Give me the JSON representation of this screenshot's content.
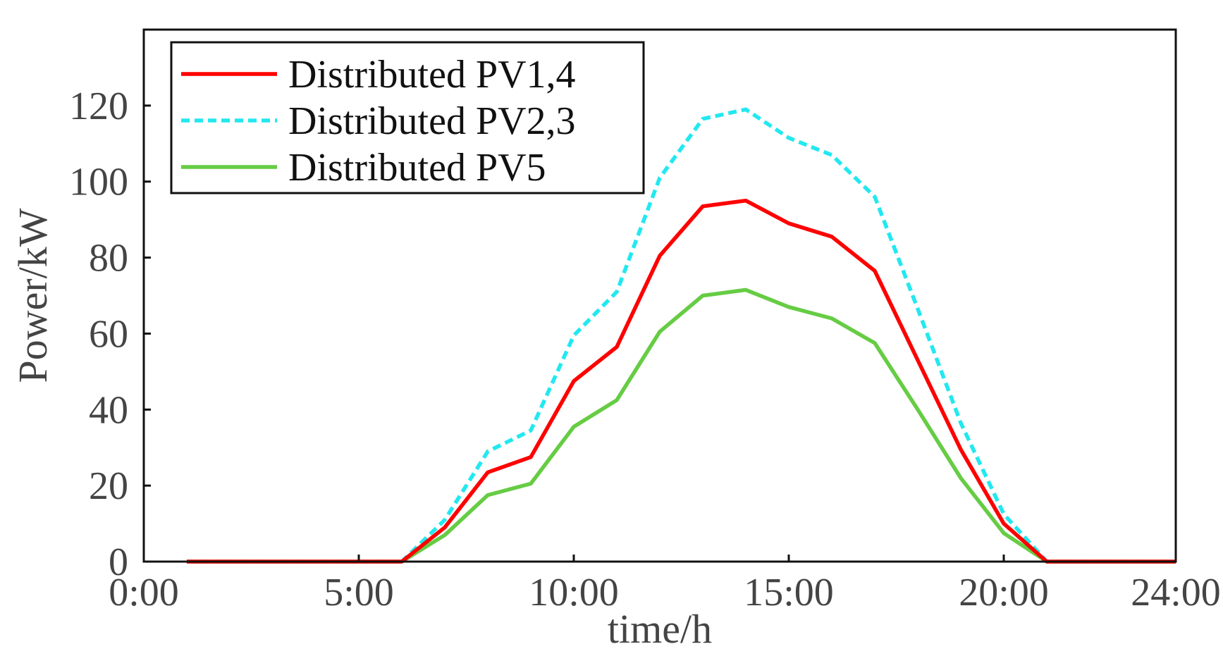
{
  "chart_data": {
    "type": "line",
    "title": "",
    "xlabel": "time/h",
    "ylabel": "Power/kW",
    "xlim": [
      0,
      24
    ],
    "ylim": [
      0,
      140
    ],
    "grid": false,
    "legend_position": "top-left",
    "xticks": [
      0,
      5,
      10,
      15,
      20,
      24
    ],
    "xtick_labels": [
      "0:00",
      "5:00",
      "10:00",
      "15:00",
      "20:00",
      "24:00"
    ],
    "yticks": [
      0,
      20,
      40,
      60,
      80,
      100,
      120
    ],
    "ytick_labels": [
      "0",
      "20",
      "40",
      "60",
      "80",
      "100",
      "120"
    ],
    "x": [
      1,
      2,
      3,
      4,
      5,
      6,
      7,
      8,
      9,
      10,
      11,
      12,
      13,
      14,
      15,
      16,
      17,
      18,
      19,
      20,
      21,
      22,
      23,
      24
    ],
    "series": [
      {
        "name": "Distributed PV1,4",
        "color": "#ff0000",
        "dash": "solid",
        "values": [
          0,
          0,
          0,
          0,
          0,
          0,
          9,
          23.5,
          27.5,
          47.5,
          56.5,
          80.5,
          93.5,
          95,
          89,
          85.5,
          76.5,
          53,
          29.5,
          10,
          0,
          0,
          0,
          0
        ]
      },
      {
        "name": "Distributed PV2,3",
        "color": "#22e8f0",
        "dash": "dashed",
        "values": [
          0,
          0,
          0,
          0,
          0,
          0,
          11,
          29,
          34.5,
          59.5,
          71,
          101,
          116.5,
          119,
          111.5,
          107,
          96,
          66.5,
          36.5,
          12.5,
          0,
          0,
          0,
          0
        ]
      },
      {
        "name": "Distributed PV5",
        "color": "#66cc44",
        "dash": "solid",
        "values": [
          0,
          0,
          0,
          0,
          0,
          0,
          7,
          17.5,
          20.5,
          35.5,
          42.5,
          60.5,
          70,
          71.5,
          67,
          64,
          57.5,
          40,
          22,
          7.5,
          0,
          0,
          0,
          0
        ]
      }
    ]
  }
}
